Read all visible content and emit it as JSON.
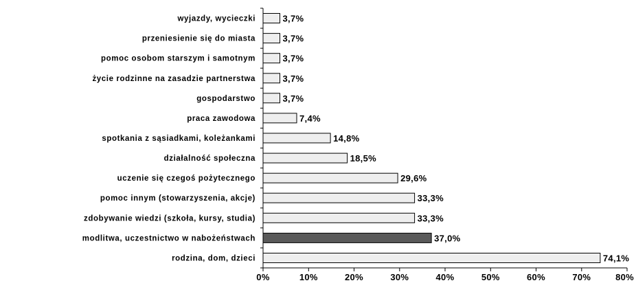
{
  "chart_data": {
    "type": "bar",
    "orientation": "horizontal",
    "categories": [
      "wyjazdy, wycieczki",
      "przeniesienie się do miasta",
      "pomoc osobom starszym i samotnym",
      "życie rodzinne na zasadzie partnerstwa",
      "gospodarstwo",
      "praca zawodowa",
      "spotkania z sąsiadkami, koleżankami",
      "działalność społeczna",
      "uczenie się czegoś pożytecznego",
      "pomoc innym (stowarzyszenia, akcje)",
      "zdobywanie wiedzi (szkoła, kursy, studia)",
      "modlitwa, uczestnictwo w nabożeństwach",
      "rodzina, dom, dzieci"
    ],
    "values": [
      3.7,
      3.7,
      3.7,
      3.7,
      3.7,
      7.4,
      14.8,
      18.5,
      29.6,
      33.3,
      33.3,
      37.0,
      74.1
    ],
    "value_labels": [
      "3,7%",
      "3,7%",
      "3,7%",
      "3,7%",
      "3,7%",
      "7,4%",
      "14,8%",
      "18,5%",
      "29,6%",
      "33,3%",
      "33,3%",
      "37,0%",
      "74,1%"
    ],
    "highlight_index": 11,
    "xlim": [
      0,
      80
    ],
    "x_ticks": [
      "0%",
      "10%",
      "20%",
      "30%",
      "40%",
      "50%",
      "60%",
      "70%",
      "80%"
    ],
    "bar_color": "#eeeeee",
    "highlight_color": "#5a5a5a",
    "grid": false,
    "title": "",
    "xlabel": "",
    "ylabel": ""
  }
}
